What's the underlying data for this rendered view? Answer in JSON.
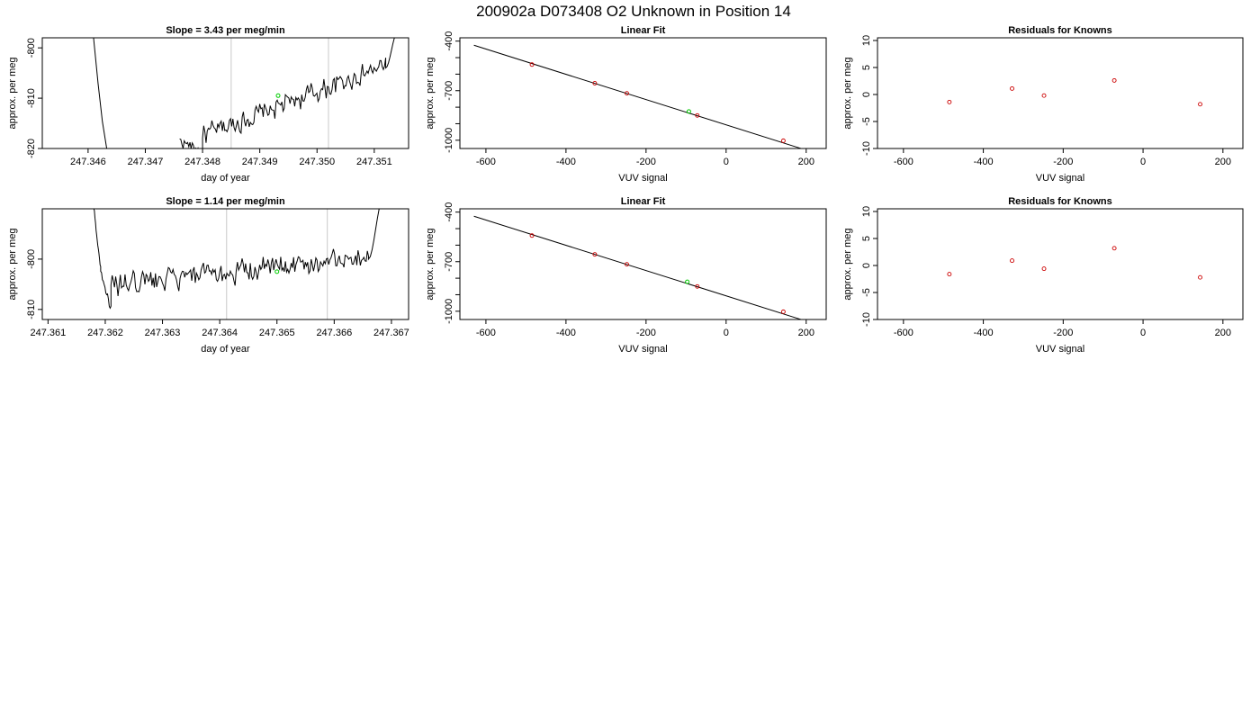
{
  "figure": {
    "title": "200902a     D073408   O2 Unknown in Position  14"
  },
  "colors": {
    "trace": "#000000",
    "known_point": "#cc0000",
    "unknown_point": "#00cc00",
    "marker_line": "#c8c8c8"
  },
  "chart_data": [
    {
      "type": "line",
      "title": "Slope =  3.43  per meg/min",
      "xlabel": "day of year",
      "ylabel": "approx. per meg",
      "xlim": [
        247.3452,
        247.3516
      ],
      "ylim": [
        -820,
        -798
      ],
      "xticks": [
        "247.346",
        "247.347",
        "247.348",
        "247.349",
        "247.350",
        "247.351"
      ],
      "xtick_values": [
        247.346,
        247.347,
        247.348,
        247.349,
        247.35,
        247.351
      ],
      "yticks": [
        "-800",
        "-810",
        "-820"
      ],
      "ytick_values": [
        -800,
        -810,
        -820
      ],
      "vertical_markers": [
        247.3485,
        247.3502
      ],
      "trace": {
        "segments": [
          {
            "x_start": 247.3458,
            "x_end": 247.3464,
            "y_start": -775,
            "y_end": -822,
            "noise": 0.0
          },
          {
            "x_start": 247.3476,
            "x_end": 247.348,
            "y_start": -818.5,
            "y_end": -820.5,
            "noise": 0.8
          },
          {
            "x_start": 247.348,
            "x_end": 247.3512,
            "y_start": -817.5,
            "y_end": -803.5,
            "noise": 1.5
          },
          {
            "x_start": 247.3512,
            "x_end": 247.3514,
            "y_start": -804,
            "y_end": -797,
            "noise": 0.0
          }
        ]
      },
      "unknown_marker": {
        "x": 247.34932,
        "y": -809.5
      }
    },
    {
      "type": "scatter",
      "title": "Linear Fit",
      "xlabel": "VUV signal",
      "ylabel": "approx. per meg",
      "xlim": [
        -665,
        250
      ],
      "ylim": [
        -1050,
        -380
      ],
      "xticks": [
        "-600",
        "-400",
        "-200",
        "0",
        "200"
      ],
      "xtick_values": [
        -600,
        -400,
        -200,
        0,
        200
      ],
      "yticks": [
        "-400",
        "-700",
        "-1000"
      ],
      "ytick_values": [
        -400,
        -700,
        -1000
      ],
      "minor_yticks": [
        -500,
        -600,
        -800,
        -900
      ],
      "fit_line": {
        "x": [
          -630,
          220
        ],
        "y": [
          -425,
          -1075
        ]
      },
      "known_points": [
        {
          "x": -485,
          "y": -542
        },
        {
          "x": -328,
          "y": -655
        },
        {
          "x": -248,
          "y": -716
        },
        {
          "x": -72,
          "y": -850
        },
        {
          "x": 143,
          "y": -1003
        }
      ],
      "unknown_points": [
        {
          "x": -93,
          "y": -826
        }
      ]
    },
    {
      "type": "scatter",
      "title": "Residuals for Knowns",
      "xlabel": "VUV signal",
      "ylabel": "approx. per meg",
      "xlim": [
        -665,
        250
      ],
      "ylim": [
        -10,
        10.5
      ],
      "xticks": [
        "-600",
        "-400",
        "-200",
        "0",
        "200"
      ],
      "xtick_values": [
        -600,
        -400,
        -200,
        0,
        200
      ],
      "yticks": [
        "10",
        "5",
        "0",
        "-5",
        "-10"
      ],
      "ytick_values": [
        10,
        5,
        0,
        -5,
        -10
      ],
      "known_points": [
        {
          "x": -485,
          "y": -1.4
        },
        {
          "x": -328,
          "y": 1.1
        },
        {
          "x": -248,
          "y": -0.2
        },
        {
          "x": -72,
          "y": 2.6
        },
        {
          "x": 143,
          "y": -1.8
        }
      ]
    },
    {
      "type": "line",
      "title": "Slope =  1.14  per meg/min",
      "xlabel": "day of year",
      "ylabel": "approx. per meg",
      "xlim": [
        247.3609,
        247.3673
      ],
      "ylim": [
        -812,
        -790
      ],
      "xticks": [
        "247.361",
        "247.362",
        "247.363",
        "247.364",
        "247.365",
        "247.366",
        "247.367"
      ],
      "xtick_values": [
        247.361,
        247.362,
        247.363,
        247.364,
        247.365,
        247.366,
        247.367
      ],
      "yticks": [
        "-800",
        "-810"
      ],
      "ytick_values": [
        -800,
        -810
      ],
      "vertical_markers": [
        247.36412,
        247.36588
      ],
      "trace": {
        "segments": [
          {
            "x_start": 247.3618,
            "x_end": 247.36192,
            "y_start": -790,
            "y_end": -802,
            "noise": 0.5
          },
          {
            "x_start": 247.36192,
            "x_end": 247.3621,
            "y_start": -802,
            "y_end": -810,
            "noise": 0.6
          },
          {
            "x_start": 247.3621,
            "x_end": 247.3666,
            "y_start": -805.5,
            "y_end": -799.5,
            "noise": 1.6
          },
          {
            "x_start": 247.3666,
            "x_end": 247.36685,
            "y_start": -800,
            "y_end": -788,
            "noise": 0.0
          }
        ]
      },
      "unknown_marker": {
        "x": 247.365,
        "y": -802.5
      }
    },
    {
      "type": "scatter",
      "title": "Linear Fit",
      "xlabel": "VUV signal",
      "ylabel": "approx. per meg",
      "xlim": [
        -665,
        250
      ],
      "ylim": [
        -1050,
        -380
      ],
      "xticks": [
        "-600",
        "-400",
        "-200",
        "0",
        "200"
      ],
      "xtick_values": [
        -600,
        -400,
        -200,
        0,
        200
      ],
      "yticks": [
        "-400",
        "-700",
        "-1000"
      ],
      "ytick_values": [
        -400,
        -700,
        -1000
      ],
      "minor_yticks": [
        -500,
        -600,
        -800,
        -900
      ],
      "fit_line": {
        "x": [
          -630,
          220
        ],
        "y": [
          -425,
          -1075
        ]
      },
      "known_points": [
        {
          "x": -485,
          "y": -542
        },
        {
          "x": -328,
          "y": -656
        },
        {
          "x": -248,
          "y": -716
        },
        {
          "x": -72,
          "y": -850
        },
        {
          "x": 143,
          "y": -1003
        }
      ],
      "unknown_points": [
        {
          "x": -97,
          "y": -822
        }
      ]
    },
    {
      "type": "scatter",
      "title": "Residuals for Knowns",
      "xlabel": "VUV signal",
      "ylabel": "approx. per meg",
      "xlim": [
        -665,
        250
      ],
      "ylim": [
        -10,
        10.5
      ],
      "xticks": [
        "-600",
        "-400",
        "-200",
        "0",
        "200"
      ],
      "xtick_values": [
        -600,
        -400,
        -200,
        0,
        200
      ],
      "yticks": [
        "10",
        "5",
        "0",
        "-5",
        "-10"
      ],
      "ytick_values": [
        10,
        5,
        0,
        -5,
        -10
      ],
      "known_points": [
        {
          "x": -485,
          "y": -1.6
        },
        {
          "x": -328,
          "y": 0.9
        },
        {
          "x": -248,
          "y": -0.6
        },
        {
          "x": -72,
          "y": 3.2
        },
        {
          "x": 143,
          "y": -2.2
        }
      ]
    }
  ]
}
